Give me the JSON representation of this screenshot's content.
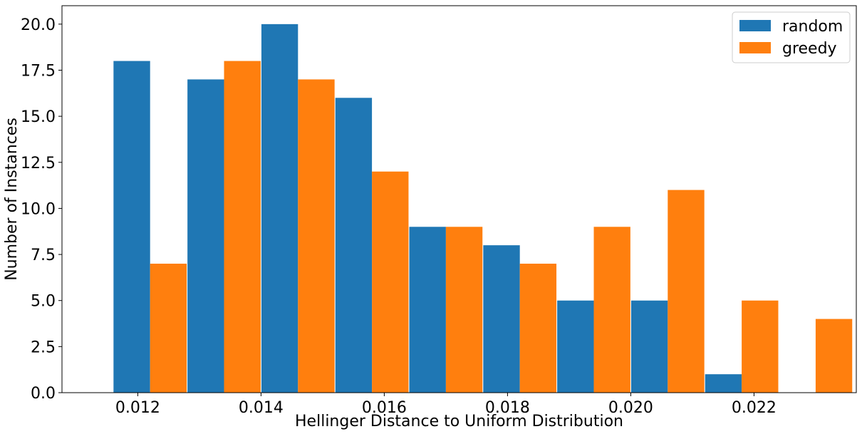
{
  "chart_data": {
    "type": "bar",
    "xlabel": "Hellinger Distance to Uniform Distribution",
    "ylabel": "Number of Instances",
    "xlim": [
      0.01077,
      0.02366
    ],
    "ylim": [
      0.0,
      21.0
    ],
    "bin_width": 0.0011875,
    "x": [
      0.0122,
      0.0134,
      0.0146,
      0.0158,
      0.017,
      0.0182,
      0.0194,
      0.0206,
      0.0218,
      0.023
    ],
    "x_ticks": [
      0.012,
      0.014,
      0.016,
      0.018,
      0.02,
      0.022
    ],
    "x_tick_labels": [
      "0.012",
      "0.014",
      "0.016",
      "0.018",
      "0.020",
      "0.022"
    ],
    "y_ticks": [
      0.0,
      2.5,
      5.0,
      7.5,
      10.0,
      12.5,
      15.0,
      17.5,
      20.0
    ],
    "y_tick_labels": [
      "0.0",
      "2.5",
      "5.0",
      "7.5",
      "10.0",
      "12.5",
      "15.0",
      "17.5",
      "20.0"
    ],
    "series": [
      {
        "name": "random",
        "color": "#1f77b4",
        "values": [
          18,
          17,
          20,
          16,
          9,
          8,
          5,
          5,
          1,
          0
        ]
      },
      {
        "name": "greedy",
        "color": "#ff7f0e",
        "values": [
          7,
          18,
          17,
          12,
          9,
          7,
          9,
          11,
          5,
          4
        ]
      }
    ],
    "legend": {
      "placement": "top-right"
    },
    "grid": false
  }
}
